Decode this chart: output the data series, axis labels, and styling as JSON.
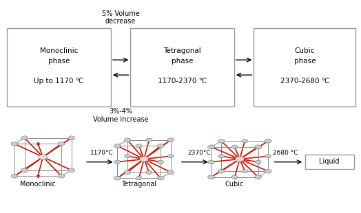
{
  "bg_color": "#ffffff",
  "box1_label": "Monoclinic\nphase\n\nUp to 1170 ℃",
  "box2_label": "Tetragonal\nphase\n\n1170-2370 ℃",
  "box3_label": "Cubic\nphase\n\n2370-2680 ℃",
  "box_liquid_label": "Liquid",
  "arrow_top_label": "5% Volume\ndecrease",
  "arrow_bottom_label": "3%-4%\nVolume increase",
  "temp1": "1170°C",
  "temp2": "2370°C",
  "temp3": "2680 °C",
  "label_mono": "Monoclinic",
  "label_tetra": "Tetragonal",
  "label_cubic": "Cubic",
  "box_edge_color": "#999999",
  "text_color": "#000000",
  "arrow_color": "#000000",
  "font_size_box": 7.5,
  "font_size_label": 7,
  "font_size_temp": 6.5,
  "font_size_arrow_label": 7.0
}
